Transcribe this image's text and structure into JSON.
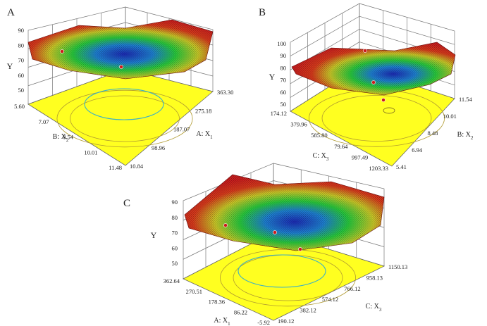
{
  "figure": {
    "panels": [
      "A",
      "B",
      "C"
    ]
  },
  "colors": {
    "surface_high": "#c81e1e",
    "surface_mid": "#28c83c",
    "surface_low": "#1c2bb4",
    "contour_floor": "#ffff20",
    "contour_ring": "#3ab0c8",
    "design_point": "#cc1a1a"
  },
  "chart_data": [
    {
      "type": "surface",
      "panel": "A",
      "zlabel": "Y",
      "z_ticks": [
        "90",
        "80",
        "70",
        "60",
        "50"
      ],
      "xlabel": "A: X1",
      "x_ticks": [
        "10.84",
        "98.96",
        "187.07",
        "275.18",
        "363.30"
      ],
      "ylabel": "B: X2",
      "y_ticks": [
        "5.60",
        "7.07",
        "8.54",
        "10.01",
        "11.48"
      ],
      "zlim": [
        50,
        90
      ],
      "surface": {
        "min_z": 64,
        "corner_z": [
          86,
          84,
          80,
          78
        ]
      },
      "design_points_z": [
        78,
        66
      ]
    },
    {
      "type": "surface",
      "panel": "B",
      "zlabel": "Y",
      "z_ticks": [
        "100",
        "90",
        "80",
        "70",
        "60",
        "50"
      ],
      "xlabel": "C: X3",
      "x_ticks": [
        "174.12",
        "379.96",
        "585.80",
        "79.64",
        "997.49",
        "1203.33"
      ],
      "ylabel": "B: X2",
      "y_ticks": [
        "5.41",
        "6.94",
        "8.48",
        "10.01",
        "11.54"
      ],
      "zlim": [
        50,
        100
      ],
      "surface": {
        "min_z": 64,
        "corner_z": [
          100,
          90,
          80,
          76
        ]
      },
      "design_points_z": [
        90,
        69,
        55
      ]
    },
    {
      "type": "surface",
      "panel": "C",
      "zlabel": "Y",
      "z_ticks": [
        "90",
        "80",
        "70",
        "60",
        "50"
      ],
      "xlabel": "A: X1",
      "x_ticks": [
        "362.64",
        "270.51",
        "178.36",
        "86.22",
        "-5.92"
      ],
      "ylabel": "C: X3",
      "y_ticks": [
        "190.12",
        "382.12",
        "574.12",
        "766.12",
        "958.13",
        "1150.13"
      ],
      "zlim": [
        50,
        90
      ],
      "surface": {
        "min_z": 62,
        "corner_z": [
          90,
          84,
          82,
          78
        ]
      },
      "design_points_z": [
        75,
        69,
        66
      ]
    }
  ]
}
